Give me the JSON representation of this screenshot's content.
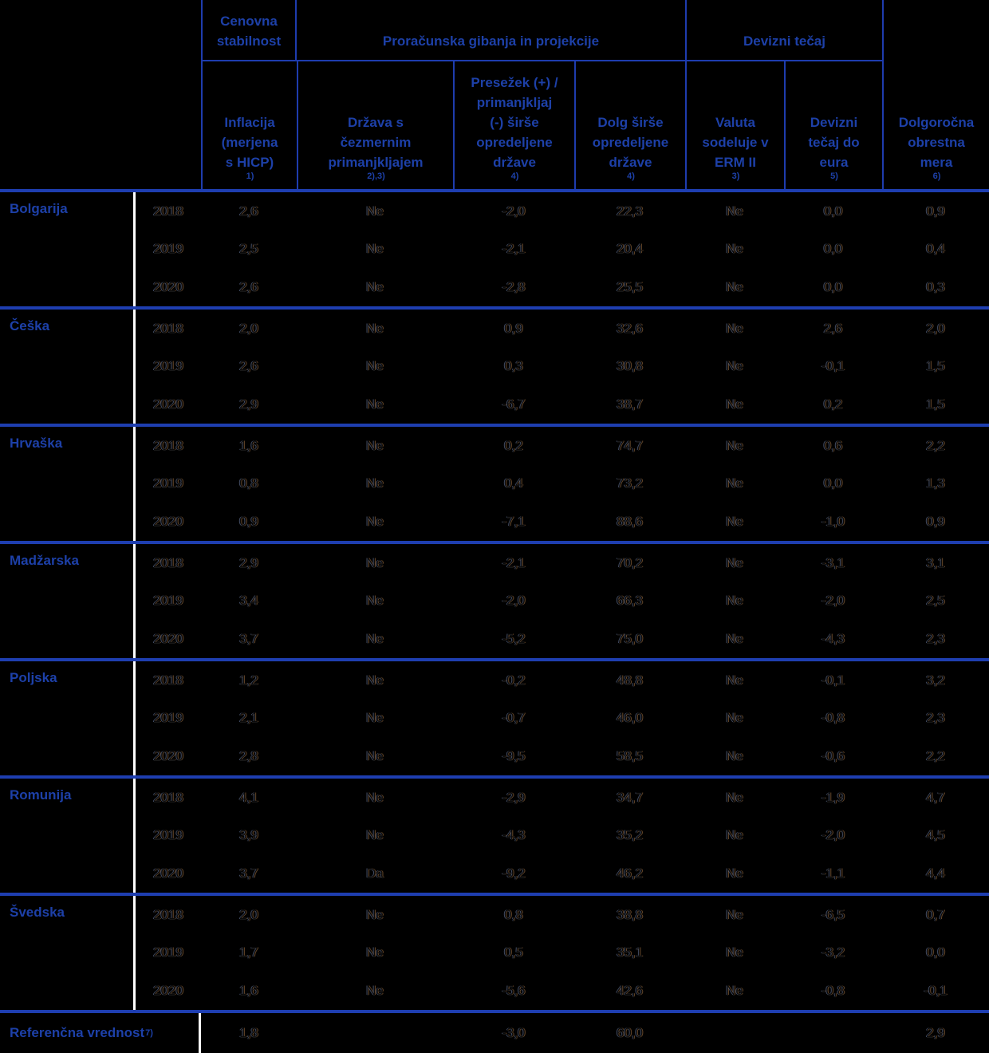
{
  "table": {
    "title_hidden": "",
    "group_headers": {
      "price_stability": [
        "Cenovna",
        "stabilnost"
      ],
      "fiscal": "Proračunska gibanja in projekcije",
      "exchange_rate": "Devizni tečaj"
    },
    "columns": {
      "inflation": {
        "label": [
          "Inflacija",
          "(merjena",
          "s HICP)"
        ],
        "sup": "1)"
      },
      "deficit_country": {
        "label": [
          "Država s",
          "čezmernim",
          "primanjkljajem"
        ],
        "sup": "2),3)"
      },
      "surplus": {
        "label": [
          "Presežek (+) /",
          "primanjkljaj",
          "(-) širše",
          "opredeljene",
          "države"
        ],
        "sup": "4)"
      },
      "debt": {
        "label": [
          "Dolg širše",
          "opredeljene",
          "države"
        ],
        "sup": "4)"
      },
      "erm": {
        "label": [
          "Valuta",
          "sodeluje v",
          "ERM II"
        ],
        "sup": "3)"
      },
      "fx_rate": {
        "label": [
          "Devizni",
          "tečaj do",
          "eura"
        ],
        "sup": "5)"
      },
      "long_term": {
        "label": [
          "Dolgoročna",
          "obrestna",
          "mera"
        ],
        "sup": "6)"
      }
    },
    "blocks": [
      {
        "country": "Bolgarija",
        "years": [
          {
            "year": "2018",
            "vals": [
              "2,6",
              "Ne",
              "-2,0",
              "22,3",
              "Ne",
              "0,0",
              "0,9"
            ]
          },
          {
            "year": "2019",
            "vals": [
              "2,5",
              "Ne",
              "-2,1",
              "20,4",
              "Ne",
              "0,0",
              "0,4"
            ]
          },
          {
            "year": "2020",
            "vals": [
              "2,6",
              "Ne",
              "-2,8",
              "25,5",
              "Ne",
              "0,0",
              "0,3"
            ]
          }
        ]
      },
      {
        "country": "Češka",
        "years": [
          {
            "year": "2018",
            "vals": [
              "2,0",
              "Ne",
              "0,9",
              "32,6",
              "Ne",
              "2,6",
              "2,0"
            ]
          },
          {
            "year": "2019",
            "vals": [
              "2,6",
              "Ne",
              "0,3",
              "30,8",
              "Ne",
              "-0,1",
              "1,5"
            ]
          },
          {
            "year": "2020",
            "vals": [
              "2,9",
              "Ne",
              "-6,7",
              "38,7",
              "Ne",
              "0,2",
              "1,5"
            ]
          }
        ]
      },
      {
        "country": "Hrvaška",
        "years": [
          {
            "year": "2018",
            "vals": [
              "1,6",
              "Ne",
              "0,2",
              "74,7",
              "Ne",
              "0,6",
              "2,2"
            ]
          },
          {
            "year": "2019",
            "vals": [
              "0,8",
              "Ne",
              "0,4",
              "73,2",
              "Ne",
              "0,0",
              "1,3"
            ]
          },
          {
            "year": "2020",
            "vals": [
              "0,9",
              "Ne",
              "-7,1",
              "88,6",
              "Ne",
              "-1,0",
              "0,9"
            ]
          }
        ]
      },
      {
        "country": "Madžarska",
        "years": [
          {
            "year": "2018",
            "vals": [
              "2,9",
              "Ne",
              "-2,1",
              "70,2",
              "Ne",
              "-3,1",
              "3,1"
            ]
          },
          {
            "year": "2019",
            "vals": [
              "3,4",
              "Ne",
              "-2,0",
              "66,3",
              "Ne",
              "-2,0",
              "2,5"
            ]
          },
          {
            "year": "2020",
            "vals": [
              "3,7",
              "Ne",
              "-5,2",
              "75,0",
              "Ne",
              "-4,3",
              "2,3"
            ]
          }
        ]
      },
      {
        "country": "Poljska",
        "years": [
          {
            "year": "2018",
            "vals": [
              "1,2",
              "Ne",
              "-0,2",
              "48,8",
              "Ne",
              "-0,1",
              "3,2"
            ]
          },
          {
            "year": "2019",
            "vals": [
              "2,1",
              "Ne",
              "-0,7",
              "46,0",
              "Ne",
              "-0,8",
              "2,3"
            ]
          },
          {
            "year": "2020",
            "vals": [
              "2,8",
              "Ne",
              "-9,5",
              "58,5",
              "Ne",
              "-0,6",
              "2,2"
            ]
          }
        ]
      },
      {
        "country": "Romunija",
        "years": [
          {
            "year": "2018",
            "vals": [
              "4,1",
              "Ne",
              "-2,9",
              "34,7",
              "Ne",
              "-1,9",
              "4,7"
            ]
          },
          {
            "year": "2019",
            "vals": [
              "3,9",
              "Ne",
              "-4,3",
              "35,2",
              "Ne",
              "-2,0",
              "4,5"
            ]
          },
          {
            "year": "2020",
            "vals": [
              "3,7",
              "Da",
              "-9,2",
              "46,2",
              "Ne",
              "-1,1",
              "4,4"
            ]
          }
        ]
      },
      {
        "country": "Švedska",
        "years": [
          {
            "year": "2018",
            "vals": [
              "2,0",
              "Ne",
              "0,8",
              "38,8",
              "Ne",
              "-6,5",
              "0,7"
            ]
          },
          {
            "year": "2019",
            "vals": [
              "1,7",
              "Ne",
              "0,5",
              "35,1",
              "Ne",
              "-3,2",
              "0,0"
            ]
          },
          {
            "year": "2020",
            "vals": [
              "1,6",
              "Ne",
              "-5,6",
              "42,6",
              "Ne",
              "-0,8",
              "-0,1"
            ]
          }
        ]
      }
    ],
    "reference": {
      "label": "Referenčna vrednost",
      "sup": "7)",
      "values": {
        "inflation": "1,8",
        "surplus": "-3,0",
        "debt": "60,0",
        "long_term": "2,9"
      }
    },
    "colors": {
      "accent_blue": "#1d40a8",
      "rule_blue": "#1e3eb0",
      "divider_white": "#ffffff",
      "background": "#000000"
    }
  }
}
